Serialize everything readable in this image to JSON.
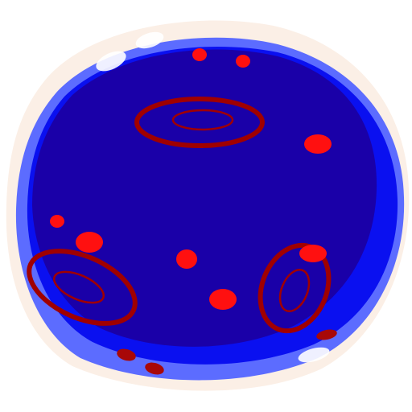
{
  "illustration": {
    "subject_icon": "cratered-planet-icon",
    "colors": {
      "background": "#ffffff",
      "halo": "#fbefe6",
      "outer_shell": "#5c6cff",
      "mid_shell": "#0a10f0",
      "core": "#1a00a8",
      "highlight": "#ffffff",
      "crater_ring": "#a00000",
      "spot_bright": "#ff1010",
      "spot_dark": "#a80808"
    }
  }
}
